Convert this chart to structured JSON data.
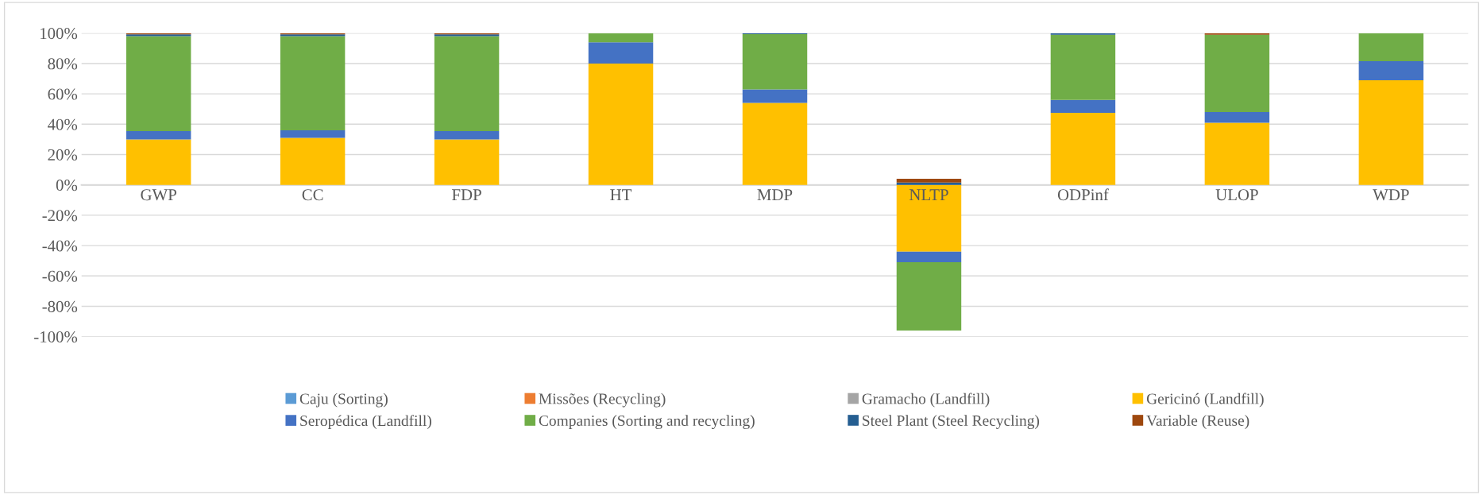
{
  "chart_data": {
    "type": "bar",
    "stacked": true,
    "categories": [
      "GWP",
      "CC",
      "FDP",
      "HT",
      "MDP",
      "NLTP",
      "ODPinf",
      "ULOP",
      "WDP"
    ],
    "series": [
      {
        "name": "Caju (Sorting)",
        "color": "#5b9bd5",
        "values": [
          0,
          0,
          0,
          0,
          0,
          0,
          0,
          0,
          0
        ]
      },
      {
        "name": "Missões (Recycling)",
        "color": "#ed7d31",
        "values": [
          0,
          0,
          0,
          0,
          0,
          0,
          0,
          0,
          0
        ]
      },
      {
        "name": "Gramacho (Landfill)",
        "color": "#a5a5a5",
        "values": [
          0,
          0,
          0,
          0,
          0,
          0,
          0,
          0,
          0
        ]
      },
      {
        "name": "Gericinó (Landfill)",
        "color": "#ffc000",
        "values": [
          30,
          31,
          30,
          80,
          54,
          -44,
          47.5,
          41,
          69
        ]
      },
      {
        "name": "Seropédica (Landfill)",
        "color": "#4472c4",
        "values": [
          5.5,
          5,
          5.5,
          14,
          9,
          -7,
          8.5,
          7,
          12.5
        ]
      },
      {
        "name": "Companies (Sorting and recycling)",
        "color": "#70ad47",
        "values": [
          62.5,
          62,
          62.5,
          6,
          36.4,
          -45,
          43,
          51,
          18.5
        ]
      },
      {
        "name": "Steel Plant (Steel Recycling)",
        "color": "#255e91",
        "values": [
          1.2,
          1.2,
          1.2,
          0,
          0.6,
          1.5,
          1,
          0,
          0
        ]
      },
      {
        "name": "Variable (Reuse)",
        "color": "#9e480e",
        "values": [
          0.8,
          0.8,
          0.8,
          0,
          0,
          2.5,
          0,
          1,
          0
        ]
      }
    ],
    "ylim": [
      -100,
      100
    ],
    "yticks": [
      {
        "value": -100,
        "label": "-100%"
      },
      {
        "value": -80,
        "label": "-80%"
      },
      {
        "value": -60,
        "label": "-60%"
      },
      {
        "value": -40,
        "label": "-40%"
      },
      {
        "value": -20,
        "label": "-20%"
      },
      {
        "value": 0,
        "label": "0%"
      },
      {
        "value": 20,
        "label": "20%"
      },
      {
        "value": 40,
        "label": "40%"
      },
      {
        "value": 60,
        "label": "60%"
      },
      {
        "value": 80,
        "label": "80%"
      },
      {
        "value": 100,
        "label": "100%"
      }
    ],
    "grid": "y",
    "legend": "bottom"
  }
}
